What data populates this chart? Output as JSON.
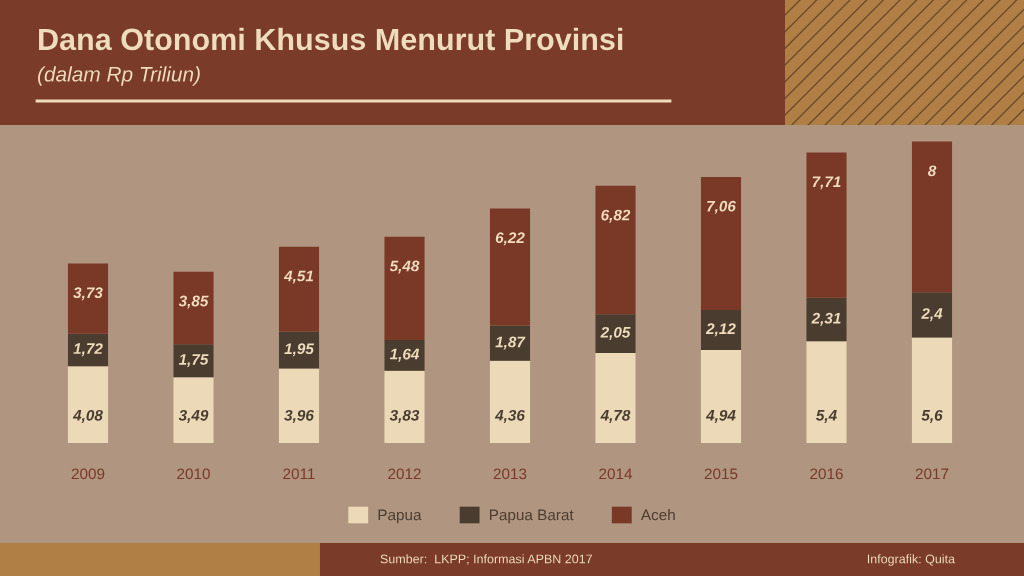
{
  "chart_data": {
    "type": "bar",
    "title": "Dana Otonomi Khusus Menurut Provinsi",
    "subtitle": "(dalam Rp Triliun)",
    "categories": [
      "2009",
      "2010",
      "2011",
      "2012",
      "2013",
      "2014",
      "2015",
      "2016",
      "2017"
    ],
    "stacked": true,
    "legend": "bottom",
    "series": [
      {
        "name": "Papua",
        "color": "#ecd9b8",
        "values": [
          4.08,
          3.49,
          3.96,
          3.83,
          4.36,
          4.78,
          4.94,
          5.4,
          5.6
        ],
        "value_labels": [
          "4,08",
          "3,49",
          "3,96",
          "3,83",
          "4,36",
          "4,78",
          "4,94",
          "5,4",
          "5,6"
        ]
      },
      {
        "name": "Papua Barat",
        "color": "#4a3d30",
        "values": [
          1.72,
          1.75,
          1.95,
          1.64,
          1.87,
          2.05,
          2.12,
          2.31,
          2.4
        ],
        "value_labels": [
          "1,72",
          "1,75",
          "1,95",
          "1,64",
          "1,87",
          "2,05",
          "2,12",
          "2,31",
          "2,4"
        ]
      },
      {
        "name": "Aceh",
        "color": "#7a3826",
        "values": [
          3.73,
          3.85,
          4.51,
          5.48,
          6.22,
          6.82,
          7.06,
          7.71,
          8
        ],
        "value_labels": [
          "3,73",
          "3,85",
          "4,51",
          "5,48",
          "6,22",
          "6,82",
          "7,06",
          "7,71",
          "8"
        ]
      }
    ],
    "annotations": [
      "Sumber:  LKPP; Informasi APBN 2017",
      "Infografik: Quita"
    ]
  }
}
